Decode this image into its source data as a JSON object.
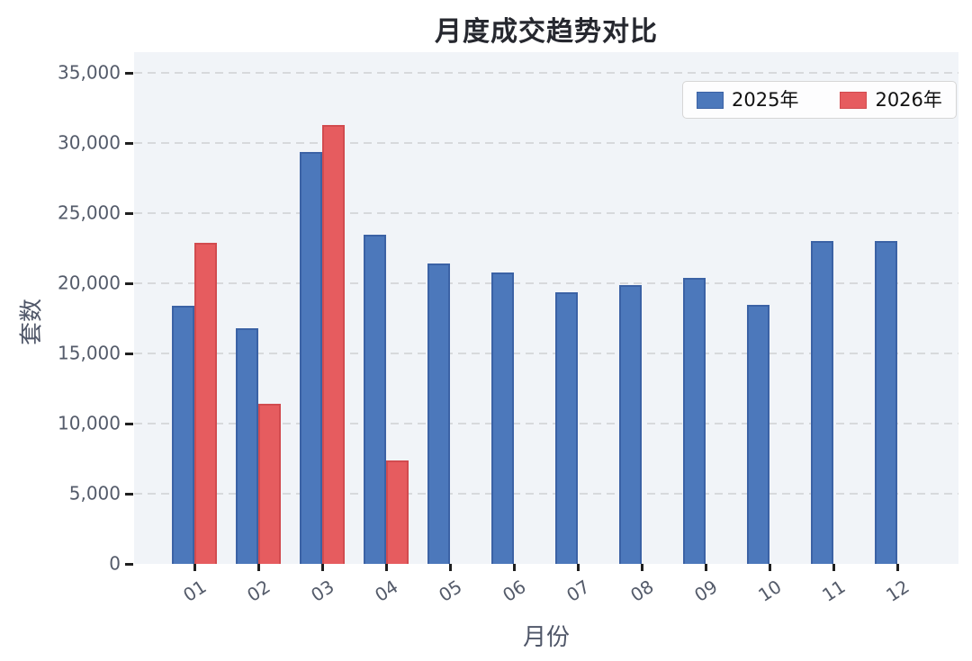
{
  "chart_data": {
    "type": "bar",
    "title": "月度成交趋势对比",
    "xlabel": "月份",
    "ylabel": "套数",
    "categories": [
      "01",
      "02",
      "03",
      "04",
      "05",
      "06",
      "07",
      "08",
      "09",
      "10",
      "11",
      "12"
    ],
    "series": [
      {
        "name": "2025年",
        "color": "#4c78bb",
        "edge_color": "#3b62a5",
        "values": [
          18400,
          16800,
          29400,
          23500,
          21400,
          20800,
          19400,
          19900,
          20400,
          18500,
          23000,
          23000
        ]
      },
      {
        "name": "2026年",
        "color": "#e65c5f",
        "edge_color": "#d24b4f",
        "values": [
          22900,
          11400,
          31300,
          7400,
          null,
          null,
          null,
          null,
          null,
          null,
          null,
          null
        ]
      }
    ],
    "yticks": [
      0,
      5000,
      10000,
      15000,
      20000,
      25000,
      30000,
      35000
    ],
    "ytick_labels": [
      "0",
      "5,000",
      "10,000",
      "15,000",
      "20,000",
      "25,000",
      "30,000",
      "35,000"
    ],
    "ylim": [
      0,
      36500
    ],
    "grid": "horizontal-dashed",
    "legend_position": "top-right",
    "plot_background": "#f1f4f8"
  }
}
